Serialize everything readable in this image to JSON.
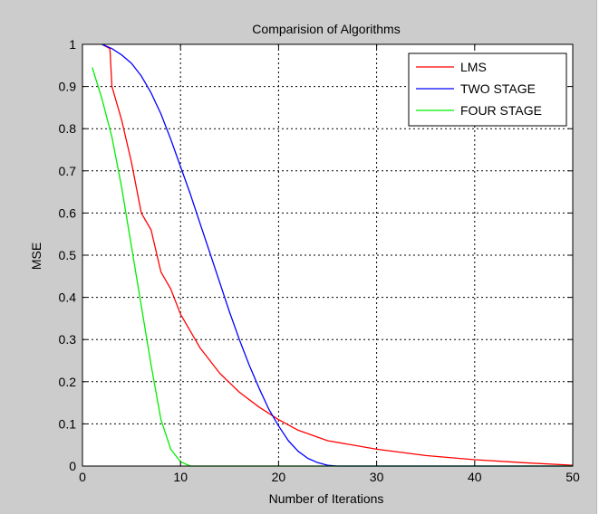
{
  "chart_data": {
    "type": "line",
    "title": "Comparision of Algorithms",
    "xlabel": "Number of Iterations",
    "ylabel": "MSE",
    "xlim": [
      0,
      50
    ],
    "ylim": [
      0,
      1
    ],
    "xticks": [
      0,
      10,
      20,
      30,
      40,
      50
    ],
    "yticks": [
      0,
      0.1,
      0.2,
      0.3,
      0.4,
      0.5,
      0.6,
      0.7,
      0.8,
      0.9,
      1
    ],
    "grid": true,
    "grid_style": "dotted",
    "legend_position": "top-right",
    "series": [
      {
        "name": "LMS",
        "color": "#ff0000",
        "x": [
          2,
          2.8,
          3,
          4,
          5,
          6,
          7,
          8,
          9,
          10,
          12,
          14,
          16,
          18,
          20,
          22,
          25,
          30,
          35,
          40,
          45,
          50
        ],
        "y": [
          1.0,
          0.99,
          0.9,
          0.82,
          0.72,
          0.6,
          0.56,
          0.46,
          0.42,
          0.36,
          0.28,
          0.22,
          0.175,
          0.14,
          0.11,
          0.085,
          0.06,
          0.04,
          0.025,
          0.015,
          0.008,
          0.002
        ]
      },
      {
        "name": "TWO STAGE",
        "color": "#0000ff",
        "x": [
          2,
          3,
          4,
          5,
          6,
          7,
          8,
          9,
          10,
          11,
          12,
          13,
          14,
          15,
          16,
          17,
          18,
          19,
          20,
          21,
          22,
          23,
          24,
          25,
          26,
          30,
          40,
          50
        ],
        "y": [
          1.0,
          0.99,
          0.975,
          0.955,
          0.925,
          0.885,
          0.835,
          0.775,
          0.71,
          0.645,
          0.575,
          0.505,
          0.435,
          0.365,
          0.3,
          0.24,
          0.185,
          0.135,
          0.095,
          0.06,
          0.035,
          0.018,
          0.008,
          0.002,
          0.0,
          0.0,
          0.0,
          0.0
        ]
      },
      {
        "name": "FOUR STAGE",
        "color": "#00ee00",
        "x": [
          1,
          2,
          3,
          4,
          5,
          6,
          7,
          8,
          9,
          10,
          11,
          12,
          20,
          30,
          40,
          50
        ],
        "y": [
          0.945,
          0.87,
          0.78,
          0.66,
          0.52,
          0.38,
          0.24,
          0.11,
          0.04,
          0.01,
          0.0,
          0.0,
          0.0,
          0.0,
          0.0,
          0.0
        ]
      }
    ]
  }
}
